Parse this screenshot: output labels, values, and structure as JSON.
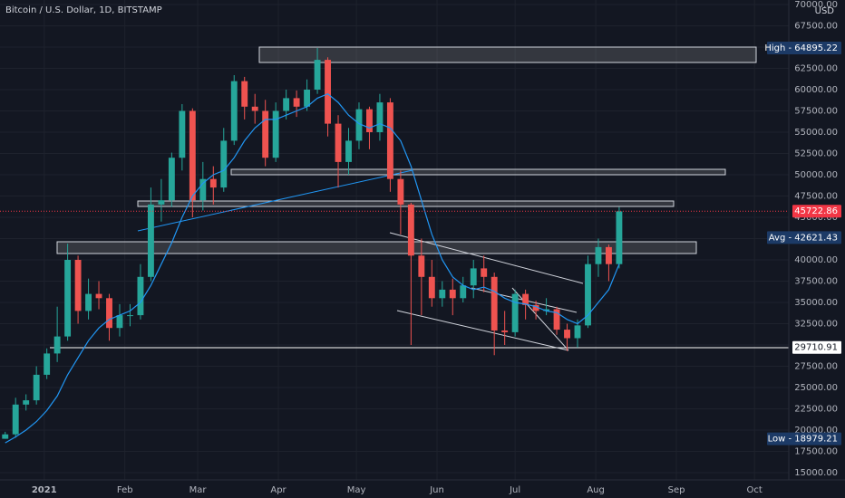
{
  "chart_data": {
    "type": "candlestick",
    "title": "Bitcoin / U.S. Dollar, 1D, BITSTAMP",
    "currency": "USD",
    "up_color": "#26a69a",
    "down_color": "#ef5350",
    "open": [
      18979,
      19500,
      23000,
      23500,
      26500,
      29000,
      31000,
      40000,
      34000,
      36000,
      35500,
      32000,
      33500,
      33500,
      38000,
      46500,
      47000,
      52000,
      57500,
      47000,
      49500,
      48500,
      54000,
      61000,
      58000,
      57500,
      52000,
      57500,
      59000,
      58000,
      60000,
      63500,
      56000,
      51500,
      54000,
      57700,
      55000,
      58500,
      49500,
      46500,
      40500,
      38000,
      35500,
      36500,
      35500,
      37000,
      39000,
      38000,
      31700,
      31500,
      36000,
      34700,
      34000,
      34200,
      31800,
      30800,
      32300,
      39500,
      41500,
      39500
    ],
    "high": [
      19800,
      23800,
      24200,
      27500,
      29600,
      34500,
      41900,
      40500,
      37800,
      37500,
      36000,
      34800,
      34800,
      39500,
      48500,
      49500,
      52600,
      58300,
      57800,
      51500,
      51000,
      55500,
      61700,
      61500,
      59500,
      58800,
      58500,
      60000,
      59900,
      61200,
      64895,
      63800,
      57000,
      55500,
      58500,
      58000,
      59500,
      59000,
      50500,
      46700,
      42500,
      40000,
      37500,
      37800,
      38000,
      40000,
      40500,
      38500,
      34000,
      36500,
      36500,
      35200,
      35500,
      34500,
      32500,
      33000,
      40500,
      42500,
      41800,
      46200
    ],
    "low": [
      18979,
      19100,
      22300,
      23000,
      26000,
      28000,
      30500,
      32500,
      33000,
      34200,
      30500,
      31000,
      32200,
      33000,
      37500,
      44500,
      46200,
      50500,
      45000,
      45800,
      46500,
      48000,
      53500,
      56500,
      56000,
      51000,
      51500,
      56500,
      56800,
      57500,
      59500,
      54500,
      48500,
      50000,
      53000,
      53000,
      54000,
      48000,
      43000,
      30000,
      33500,
      34500,
      34500,
      33500,
      35000,
      35500,
      36200,
      28800,
      30000,
      31000,
      33000,
      33000,
      33500,
      31200,
      29300,
      29700,
      32000,
      38000,
      37500,
      39000
    ],
    "close": [
      19500,
      23000,
      23500,
      26500,
      29000,
      31000,
      40000,
      34000,
      36000,
      35500,
      32000,
      33500,
      33500,
      38000,
      46500,
      47000,
      52000,
      57500,
      47000,
      49500,
      48500,
      54000,
      61000,
      58000,
      57500,
      52000,
      57500,
      59000,
      58000,
      60000,
      63500,
      56000,
      51500,
      54000,
      57700,
      55000,
      58500,
      49500,
      46500,
      40500,
      38000,
      35500,
      36500,
      35500,
      37000,
      39000,
      38000,
      31700,
      31500,
      36000,
      34700,
      34000,
      34200,
      31800,
      30800,
      32300,
      39500,
      41500,
      39500,
      45700
    ],
    "ma": {
      "color": "#2196f3",
      "values": [
        18500,
        19200,
        20000,
        21000,
        22300,
        24000,
        26500,
        28500,
        30500,
        32000,
        33000,
        33500,
        34000,
        35000,
        37000,
        39500,
        42000,
        45000,
        47500,
        49000,
        50000,
        50500,
        52000,
        54000,
        55500,
        56500,
        56500,
        57000,
        57500,
        58000,
        59000,
        59500,
        58500,
        57000,
        56000,
        55500,
        56000,
        55500,
        54000,
        51000,
        47000,
        43000,
        40000,
        38000,
        37000,
        36500,
        36800,
        36300,
        35500,
        35000,
        34800,
        34500,
        34000,
        33800,
        33000,
        32500,
        33500,
        35000,
        36500,
        39500
      ]
    },
    "xlim": [
      0,
      75.8
    ],
    "xticks": [
      {
        "value": 4.25,
        "label": "2021"
      },
      {
        "value": 12,
        "label": "Feb"
      },
      {
        "value": 19,
        "label": "Mar"
      },
      {
        "value": 26.75,
        "label": "Apr"
      },
      {
        "value": 34.25,
        "label": "May"
      },
      {
        "value": 42,
        "label": "Jun"
      },
      {
        "value": 49.5,
        "label": "Jul"
      },
      {
        "value": 57.25,
        "label": "Aug"
      },
      {
        "value": 65,
        "label": "Sep"
      },
      {
        "value": 72.5,
        "label": "Oct"
      }
    ],
    "ylim": [
      15000,
      70000
    ],
    "yticks": [
      {
        "value": 15000,
        "label": "15000.00"
      },
      {
        "value": 17500,
        "label": "17500.00"
      },
      {
        "value": 20000,
        "label": "20000.00"
      },
      {
        "value": 22500,
        "label": "22500.00"
      },
      {
        "value": 25000,
        "label": "25000.00"
      },
      {
        "value": 27500,
        "label": "27500.00"
      },
      {
        "value": 30000,
        "label": "30000.00"
      },
      {
        "value": 32500,
        "label": "32500.00"
      },
      {
        "value": 35000,
        "label": "35000.00"
      },
      {
        "value": 37500,
        "label": "37500.00"
      },
      {
        "value": 40000,
        "label": "40000.00"
      },
      {
        "value": 42500,
        "label": "42500.00"
      },
      {
        "value": 45000,
        "label": "45000.00"
      },
      {
        "value": 47500,
        "label": "47500.00"
      },
      {
        "value": 50000,
        "label": "50000.00"
      },
      {
        "value": 52500,
        "label": "52500.00"
      },
      {
        "value": 55000,
        "label": "55000.00"
      },
      {
        "value": 57500,
        "label": "57500.00"
      },
      {
        "value": 60000,
        "label": "60000.00"
      },
      {
        "value": 62500,
        "label": "62500.00"
      },
      {
        "value": 65000,
        "label": "65000.00"
      },
      {
        "value": 67500,
        "label": "67500.00"
      },
      {
        "value": 70000,
        "label": "70000.00"
      }
    ],
    "price_labels": [
      {
        "value": 64895.22,
        "label": "High  -  64895.22",
        "bg": "#1c3a66",
        "fg": "#ffffff"
      },
      {
        "value": 45722.86,
        "label": "45722.86",
        "bg": "#f23645",
        "fg": "#ffffff"
      },
      {
        "value": 42621.43,
        "label": "Avg  -  42621.43",
        "bg": "#1c3a66",
        "fg": "#ffffff"
      },
      {
        "value": 29710.91,
        "label": "29710.91",
        "bg": "#ffffff",
        "fg": "#131722"
      },
      {
        "value": 18979.21,
        "label": "Low  -  18979.21",
        "bg": "#1c3a66",
        "fg": "#ffffff"
      }
    ],
    "grid": true
  }
}
